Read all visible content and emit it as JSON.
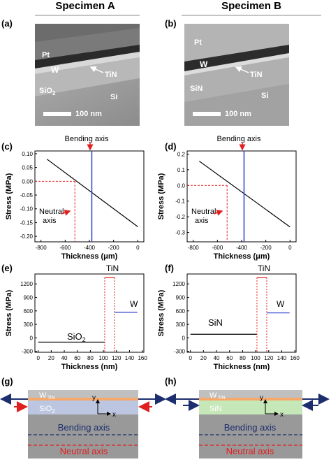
{
  "headers": {
    "left": "Specimen A",
    "right": "Specimen B"
  },
  "panels": {
    "a": {
      "letter": "(a)",
      "labels": {
        "pt": "Pt",
        "w": "W",
        "tin": "TiN",
        "oxide": "SiO",
        "oxide_sub": "2",
        "si": "Si"
      },
      "scale_bar": "100 nm"
    },
    "b": {
      "letter": "(b)",
      "labels": {
        "pt": "Pt",
        "w": "W",
        "tin": "TiN",
        "oxide": "SiN",
        "si": "Si"
      },
      "scale_bar": "100 nm"
    },
    "c": {
      "letter": "(c)",
      "bending_label": "Bending axis",
      "neutral_label_1": "Neutral",
      "neutral_label_2": "axis"
    },
    "d": {
      "letter": "(d)",
      "bending_label": "Bending axis",
      "neutral_label_1": "Neutral",
      "neutral_label_2": "axis"
    },
    "e": {
      "letter": "(e)",
      "labels": {
        "tin": "TiN",
        "w": "W",
        "oxide": "SiO",
        "oxide_sub": "2"
      }
    },
    "f": {
      "letter": "(f)",
      "labels": {
        "tin": "TiN",
        "w": "W",
        "oxide": "SiN"
      }
    },
    "g": {
      "letter": "(g)",
      "w": "W",
      "tin": "TiN",
      "oxide": "SiO",
      "oxide_sub": "2",
      "y": "y",
      "x": "x",
      "bending": "Bending axis",
      "neutral": "Neutral axis"
    },
    "h": {
      "letter": "(h)",
      "w": "W",
      "tin": "TiN",
      "oxide": "SiN",
      "y": "y",
      "x": "x",
      "bending": "Bending axis",
      "neutral": "Neutral axis"
    }
  },
  "colors": {
    "line": "#000000",
    "bending": "#2a3fc9",
    "neutral": "#e02020",
    "w_line": "#2a3fc9",
    "tin_line": "#e02020",
    "sio2_band": "#bcc6e0",
    "sin_band": "#c6e7b8",
    "tin_band": "#f5a86a",
    "substrate": "#999999",
    "top_layer": "#c0c0c0",
    "arrow_dark": "#1c2e6e",
    "bending_text": "#1c2e6e",
    "neutral_text": "#e02020"
  },
  "chart_data": [
    {
      "panel": "c",
      "type": "line",
      "xlabel": "Thickness (μm)",
      "ylabel": "Stress (MPa)",
      "xlim": [
        -850,
        50
      ],
      "ylim": [
        -0.22,
        0.11
      ],
      "xticks": [
        -800,
        -600,
        -400,
        -200,
        0
      ],
      "yticks": [
        0.1,
        0.05,
        0.0,
        -0.05,
        -0.1,
        -0.15,
        -0.2
      ],
      "ytick_labels": [
        "0.10",
        "0.05",
        "0.00",
        "-0.05",
        "-0.10",
        "-0.15",
        "-0.20"
      ],
      "series": [
        {
          "x": [
            -750,
            0
          ],
          "y": [
            0.08,
            -0.165
          ]
        }
      ],
      "bending_axis_x": -380,
      "neutral_axis_x": -520,
      "zero_line_y": 0.0,
      "grid": false
    },
    {
      "panel": "d",
      "type": "line",
      "xlabel": "Thickness (μm)",
      "ylabel": "Stress (MPa)",
      "xlim": [
        -850,
        50
      ],
      "ylim": [
        -0.36,
        0.22
      ],
      "xticks": [
        -800,
        -600,
        -400,
        -200,
        0
      ],
      "yticks": [
        0.2,
        0.1,
        0.0,
        -0.1,
        -0.2,
        -0.3
      ],
      "ytick_labels": [
        "0.2",
        "0.1",
        "0.0",
        "-0.1",
        "-0.2",
        "-0.3"
      ],
      "series": [
        {
          "x": [
            -750,
            0
          ],
          "y": [
            0.155,
            -0.265
          ]
        }
      ],
      "bending_axis_x": -380,
      "neutral_axis_x": -520,
      "zero_line_y": 0.0,
      "grid": false
    },
    {
      "panel": "e",
      "type": "line",
      "xlabel": "Thickness (nm)",
      "ylabel": "Stress (MPa)",
      "xlim": [
        -5,
        162
      ],
      "ylim": [
        -320,
        1420
      ],
      "xticks": [
        0,
        20,
        40,
        60,
        80,
        100,
        120,
        140,
        160
      ],
      "yticks": [
        1200,
        900,
        600,
        300,
        0,
        -300
      ],
      "series": [
        {
          "name": "SiO2",
          "x": [
            0,
            102
          ],
          "y": [
            -95,
            -95
          ]
        },
        {
          "name": "TiN",
          "x": [
            102,
            117
          ],
          "y": [
            1340,
            1340
          ]
        },
        {
          "name": "W",
          "x": [
            117,
            152
          ],
          "y": [
            570,
            570
          ]
        }
      ],
      "tin_bounds": [
        102,
        117
      ],
      "grid": false
    },
    {
      "panel": "f",
      "type": "line",
      "xlabel": "Thickness (nm)",
      "ylabel": "Stress (MPa)",
      "xlim": [
        -5,
        162
      ],
      "ylim": [
        -320,
        1420
      ],
      "xticks": [
        0,
        20,
        40,
        60,
        80,
        100,
        120,
        140,
        160
      ],
      "yticks": [
        1200,
        900,
        600,
        300,
        0,
        -300
      ],
      "series": [
        {
          "name": "SiN",
          "x": [
            0,
            102
          ],
          "y": [
            80,
            80
          ]
        },
        {
          "name": "TiN",
          "x": [
            102,
            117
          ],
          "y": [
            1340,
            1340
          ]
        },
        {
          "name": "W",
          "x": [
            117,
            152
          ],
          "y": [
            555,
            555
          ]
        }
      ],
      "tin_bounds": [
        102,
        117
      ],
      "grid": false
    }
  ]
}
